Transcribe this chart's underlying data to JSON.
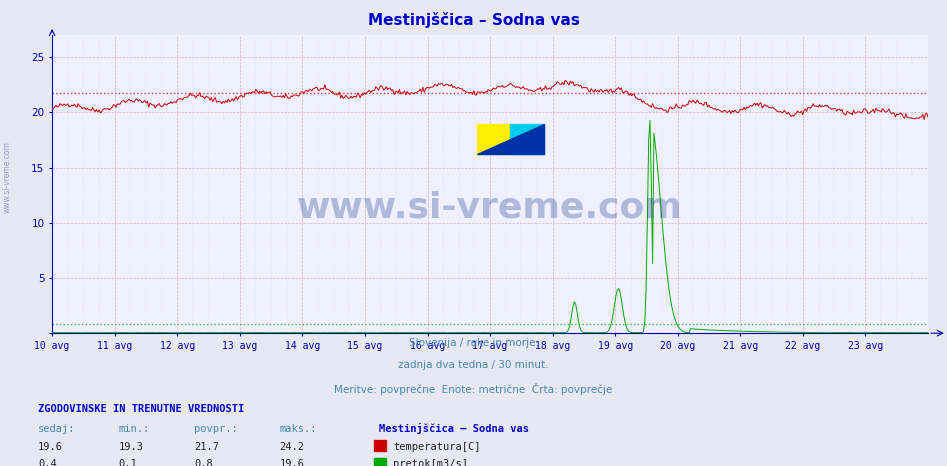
{
  "title": "Mestinjščica – Sodna vas",
  "subtitle_lines": [
    "Slovenija / reke in morje.",
    "zadnja dva tedna / 30 minut.",
    "Meritve: povprečne  Enote: metrične  Črta: povprečje"
  ],
  "x_labels": [
    "10 avg",
    "11 avg",
    "12 avg",
    "13 avg",
    "14 avg",
    "15 avg",
    "16 avg",
    "17 avg",
    "18 avg",
    "19 avg",
    "20 avg",
    "21 avg",
    "22 avg",
    "23 avg"
  ],
  "y_ticks": [
    0,
    5,
    10,
    15,
    20,
    25
  ],
  "ylim": [
    0,
    27
  ],
  "bg_color": "#e8e8f4",
  "plot_bg_color": "#f0f0ff",
  "temp_color": "#cc0000",
  "flow_color": "#00aa00",
  "avg_temp": 21.7,
  "avg_flow": 0.8,
  "title_color": "#0000cc",
  "subtitle_color": "#4488aa",
  "axis_color": "#0000aa",
  "footnote_header": "ZGODOVINSKE IN TRENUTNE VREDNOSTI",
  "footnote_header_color": "#0000cc",
  "footnote_cols": [
    "sedaj:",
    "min.:",
    "povpr.:",
    "maks.:"
  ],
  "footnote_temp": [
    19.6,
    19.3,
    21.7,
    24.2
  ],
  "footnote_flow": [
    0.4,
    0.1,
    0.8,
    19.6
  ],
  "footnote_station": "Mestinjščica – Sodna vas",
  "footnote_temp_label": "temperatura[C]",
  "footnote_flow_label": "pretok[m3/s]",
  "watermark_color": "#1a3a8a"
}
